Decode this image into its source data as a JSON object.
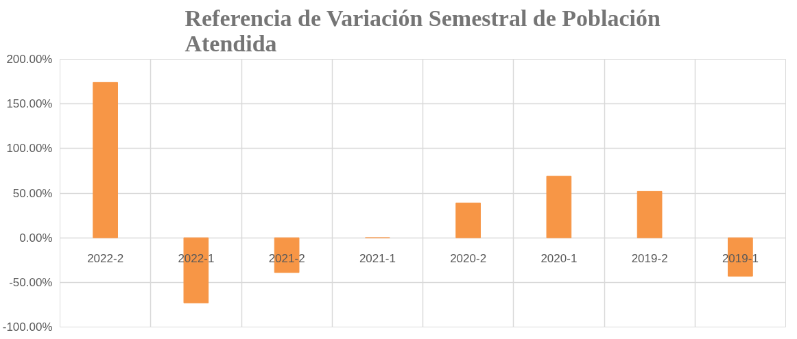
{
  "chart_data": {
    "type": "bar",
    "title": "Referencia de Variación Semestral de Población\nAtendida",
    "categories": [
      "2022-2",
      "2022-1",
      "2021-2",
      "2021-1",
      "2020-2",
      "2020-1",
      "2019-2",
      "2019-1"
    ],
    "values": [
      174,
      -73,
      -39,
      0,
      39,
      69,
      52,
      -43
    ],
    "color": "#f79646",
    "ylim": [
      -100,
      200
    ],
    "yticks": [
      {
        "value": -100,
        "label": "-100.00%"
      },
      {
        "value": -50,
        "label": "-50.00%"
      },
      {
        "value": 0,
        "label": "0.00%"
      },
      {
        "value": 50,
        "label": "50.00%"
      },
      {
        "value": 100,
        "label": "100.00%"
      },
      {
        "value": 150,
        "label": "150.00%"
      },
      {
        "value": 200,
        "label": "200.00%"
      }
    ],
    "grid": true
  }
}
